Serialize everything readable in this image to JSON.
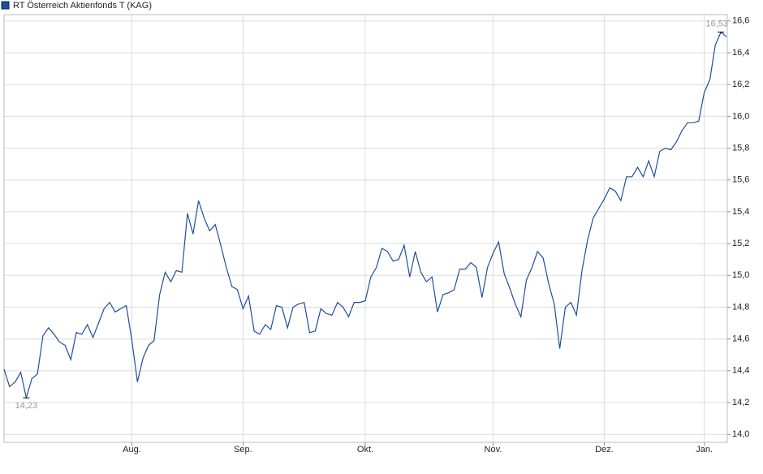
{
  "chart_data": {
    "type": "line",
    "categories": [
      null,
      null,
      null,
      null,
      null,
      null,
      null,
      null,
      null,
      null,
      null,
      null,
      null,
      null,
      null,
      null,
      null,
      null,
      null,
      null,
      null,
      null,
      null,
      "Aug.",
      null,
      null,
      null,
      null,
      null,
      null,
      null,
      null,
      null,
      null,
      null,
      null,
      null,
      null,
      null,
      null,
      null,
      null,
      null,
      "Sep.",
      null,
      null,
      null,
      null,
      null,
      null,
      null,
      null,
      null,
      null,
      null,
      null,
      null,
      null,
      null,
      null,
      null,
      null,
      null,
      null,
      null,
      "Okt.",
      null,
      null,
      null,
      null,
      null,
      null,
      null,
      null,
      null,
      null,
      null,
      null,
      null,
      null,
      null,
      null,
      null,
      null,
      null,
      null,
      null,
      null,
      "Nov.",
      null,
      null,
      null,
      null,
      null,
      null,
      null,
      null,
      null,
      null,
      null,
      null,
      null,
      null,
      null,
      null,
      null,
      null,
      null,
      "Dez.",
      null,
      null,
      null,
      null,
      null,
      null,
      null,
      null,
      null,
      null,
      null,
      null,
      null,
      null,
      null,
      null,
      null,
      "Jan.",
      null,
      null,
      null,
      null
    ],
    "series": [
      {
        "name": "RT Österreich Aktienfonds T (KAG)",
        "color": "#1f4e9c",
        "values": [
          14.41,
          14.3,
          14.33,
          14.39,
          14.23,
          14.35,
          14.38,
          14.62,
          14.67,
          14.63,
          14.58,
          14.56,
          14.47,
          14.64,
          14.63,
          14.69,
          14.61,
          14.7,
          14.79,
          14.83,
          14.77,
          14.79,
          14.81,
          14.59,
          14.33,
          14.48,
          14.56,
          14.59,
          14.88,
          15.02,
          14.96,
          15.03,
          15.02,
          15.39,
          15.26,
          15.47,
          15.36,
          15.28,
          15.32,
          15.19,
          15.05,
          14.93,
          14.91,
          14.79,
          14.87,
          14.65,
          14.63,
          14.69,
          14.66,
          14.81,
          14.8,
          14.67,
          14.8,
          14.82,
          14.83,
          14.64,
          14.65,
          14.79,
          14.76,
          14.75,
          14.83,
          14.8,
          14.74,
          14.83,
          14.83,
          14.84,
          14.99,
          15.05,
          15.17,
          15.15,
          15.09,
          15.1,
          15.19,
          14.99,
          15.15,
          15.02,
          14.96,
          14.99,
          14.77,
          14.88,
          14.89,
          14.91,
          15.04,
          15.04,
          15.08,
          15.05,
          14.86,
          15.05,
          15.14,
          15.21,
          15.01,
          14.92,
          14.82,
          14.74,
          14.97,
          15.05,
          15.15,
          15.11,
          14.95,
          14.82,
          14.54,
          14.8,
          14.83,
          14.75,
          15.03,
          15.22,
          15.36,
          15.42,
          15.48,
          15.55,
          15.53,
          15.47,
          15.62,
          15.62,
          15.68,
          15.62,
          15.72,
          15.62,
          15.78,
          15.8,
          15.79,
          15.84,
          15.91,
          15.96,
          15.96,
          15.97,
          16.15,
          16.23,
          16.45,
          16.53,
          16.5
        ]
      }
    ],
    "annotations": [
      {
        "text": "16,53",
        "value": 16.53
      },
      {
        "text": "14,23",
        "value": 14.23
      }
    ],
    "ylim": [
      13.95,
      16.64
    ],
    "yticks": [
      {
        "value": 14.0,
        "label": "14,0"
      },
      {
        "value": 14.2,
        "label": "14,2"
      },
      {
        "value": 14.4,
        "label": "14,4"
      },
      {
        "value": 14.6,
        "label": "14,6"
      },
      {
        "value": 14.8,
        "label": "14,8"
      },
      {
        "value": 15.0,
        "label": "15,0"
      },
      {
        "value": 15.2,
        "label": "15,2"
      },
      {
        "value": 15.4,
        "label": "15,4"
      },
      {
        "value": 15.6,
        "label": "15,6"
      },
      {
        "value": 15.8,
        "label": "15,8"
      },
      {
        "value": 16.0,
        "label": "16,0"
      },
      {
        "value": 16.2,
        "label": "16,2"
      },
      {
        "value": 16.4,
        "label": "16,4"
      },
      {
        "value": 16.6,
        "label": "16,6"
      }
    ],
    "grid": true
  }
}
